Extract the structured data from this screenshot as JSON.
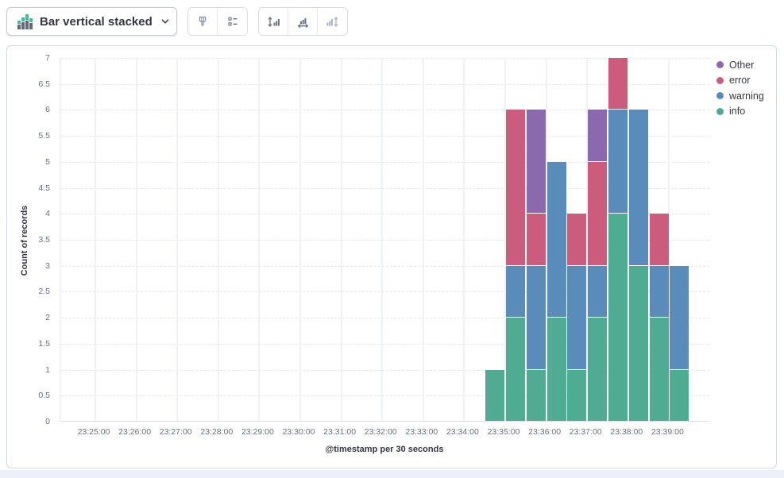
{
  "toolbar": {
    "chart_type_label": "Bar vertical stacked",
    "icons": [
      "chart-switch-icon",
      "chevron-down-icon",
      "brush-icon",
      "legend-icon",
      "left-axis-icon",
      "bottom-axis-icon",
      "right-axis-icon"
    ],
    "right_axis_disabled": true
  },
  "chart_data": {
    "type": "bar",
    "stacked": true,
    "orientation": "vertical",
    "xlabel": "@timestamp per 30 seconds",
    "ylabel": "Count of records",
    "ylim": [
      0,
      7
    ],
    "y_ticks": [
      "0",
      "0.5",
      "1",
      "1.5",
      "2",
      "2.5",
      "3",
      "3.5",
      "4",
      "4.5",
      "5",
      "5.5",
      "6",
      "6.5",
      "7"
    ],
    "x_ticks": [
      "23:25:00",
      "23:26:00",
      "23:27:00",
      "23:28:00",
      "23:29:00",
      "23:30:00",
      "23:31:00",
      "23:32:00",
      "23:33:00",
      "23:34:00",
      "23:35:00",
      "23:36:00",
      "23:37:00",
      "23:38:00",
      "23:39:00"
    ],
    "grid": {
      "horizontal": "dashed",
      "vertical": "solid"
    },
    "categories": [
      "23:34:30",
      "23:35:00",
      "23:35:30",
      "23:36:00",
      "23:36:30",
      "23:37:00",
      "23:37:30",
      "23:38:00",
      "23:38:30",
      "23:39:00"
    ],
    "series": [
      {
        "name": "info",
        "color": "#4fac93",
        "values": [
          1,
          2,
          1,
          2,
          1,
          2,
          4,
          3,
          2,
          1
        ]
      },
      {
        "name": "warning",
        "color": "#5a8cb9",
        "values": [
          0,
          1,
          2,
          3,
          2,
          1,
          2,
          3,
          1,
          2
        ]
      },
      {
        "name": "error",
        "color": "#cc5c7e",
        "values": [
          0,
          3,
          1,
          0,
          1,
          2,
          1,
          0,
          1,
          0
        ]
      },
      {
        "name": "Other",
        "color": "#8a69ae",
        "values": [
          0,
          0,
          2,
          0,
          0,
          1,
          0,
          0,
          0,
          0
        ]
      }
    ],
    "legend": {
      "position": "right",
      "items": [
        {
          "label": "Other",
          "color": "#8a69ae"
        },
        {
          "label": "error",
          "color": "#cc5c7e"
        },
        {
          "label": "warning",
          "color": "#5a8cb9"
        },
        {
          "label": "info",
          "color": "#4fac93"
        }
      ]
    }
  }
}
